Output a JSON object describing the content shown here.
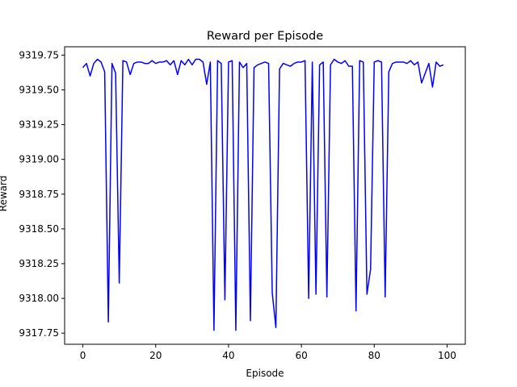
{
  "chart_data": {
    "type": "line",
    "title": "Reward per Episode",
    "xlabel": "Episode",
    "ylabel": "Reward",
    "xlim": [
      -5,
      105
    ],
    "ylim": [
      9317.67,
      9319.81
    ],
    "grid": false,
    "legend": "none",
    "xticks": [
      0,
      20,
      40,
      60,
      80,
      100
    ],
    "xtick_labels": [
      "0",
      "20",
      "40",
      "60",
      "80",
      "100"
    ],
    "yticks": [
      9317.75,
      9318.0,
      9318.25,
      9318.5,
      9318.75,
      9319.0,
      9319.25,
      9319.5,
      9319.75
    ],
    "ytick_labels": [
      "9317.75",
      "9318.00",
      "9318.25",
      "9318.50",
      "9318.75",
      "9319.00",
      "9319.25",
      "9319.50",
      "9319.75"
    ],
    "series": [
      {
        "color": "#0000ff",
        "x": [
          0,
          1,
          2,
          3,
          4,
          5,
          6,
          7,
          8,
          9,
          10,
          11,
          12,
          13,
          14,
          15,
          16,
          17,
          18,
          19,
          20,
          21,
          22,
          23,
          24,
          25,
          26,
          27,
          28,
          29,
          30,
          31,
          32,
          33,
          34,
          35,
          36,
          37,
          38,
          39,
          40,
          41,
          42,
          43,
          44,
          45,
          46,
          47,
          48,
          49,
          50,
          51,
          52,
          53,
          54,
          55,
          56,
          57,
          58,
          59,
          60,
          61,
          62,
          63,
          64,
          65,
          66,
          67,
          68,
          69,
          70,
          71,
          72,
          73,
          74,
          75,
          76,
          77,
          78,
          79,
          80,
          81,
          82,
          83,
          84,
          85,
          86,
          87,
          88,
          89,
          90,
          91,
          92,
          93,
          94,
          95,
          96,
          97,
          98,
          99
        ],
        "values": [
          9319.66,
          9319.69,
          9319.6,
          9319.69,
          9319.72,
          9319.7,
          9319.63,
          9317.83,
          9319.69,
          9319.62,
          9318.11,
          9319.71,
          9319.7,
          9319.61,
          9319.69,
          9319.7,
          9319.7,
          9319.69,
          9319.69,
          9319.71,
          9319.69,
          9319.7,
          9319.7,
          9319.71,
          9319.68,
          9319.71,
          9319.61,
          9319.71,
          9319.68,
          9319.72,
          9319.68,
          9319.72,
          9319.72,
          9319.7,
          9319.54,
          9319.7,
          9317.77,
          9319.71,
          9319.69,
          9317.99,
          9319.7,
          9319.71,
          9317.77,
          9319.7,
          9319.66,
          9319.69,
          9317.84,
          9319.66,
          9319.68,
          9319.69,
          9319.7,
          9319.69,
          9318.04,
          9317.79,
          9319.65,
          9319.69,
          9319.68,
          9319.67,
          9319.69,
          9319.7,
          9319.7,
          9319.71,
          9318.0,
          9319.7,
          9318.03,
          9319.68,
          9319.7,
          9318.01,
          9319.68,
          9319.72,
          9319.7,
          9319.69,
          9319.71,
          9319.67,
          9319.67,
          9317.91,
          9319.71,
          9319.7,
          9318.03,
          9318.21,
          9319.7,
          9319.71,
          9319.7,
          9318.01,
          9319.63,
          9319.69,
          9319.7,
          9319.7,
          9319.7,
          9319.69,
          9319.71,
          9319.68,
          9319.7,
          9319.55,
          9319.62,
          9319.69,
          9319.52,
          9319.7,
          9319.67,
          9319.68
        ]
      }
    ]
  }
}
